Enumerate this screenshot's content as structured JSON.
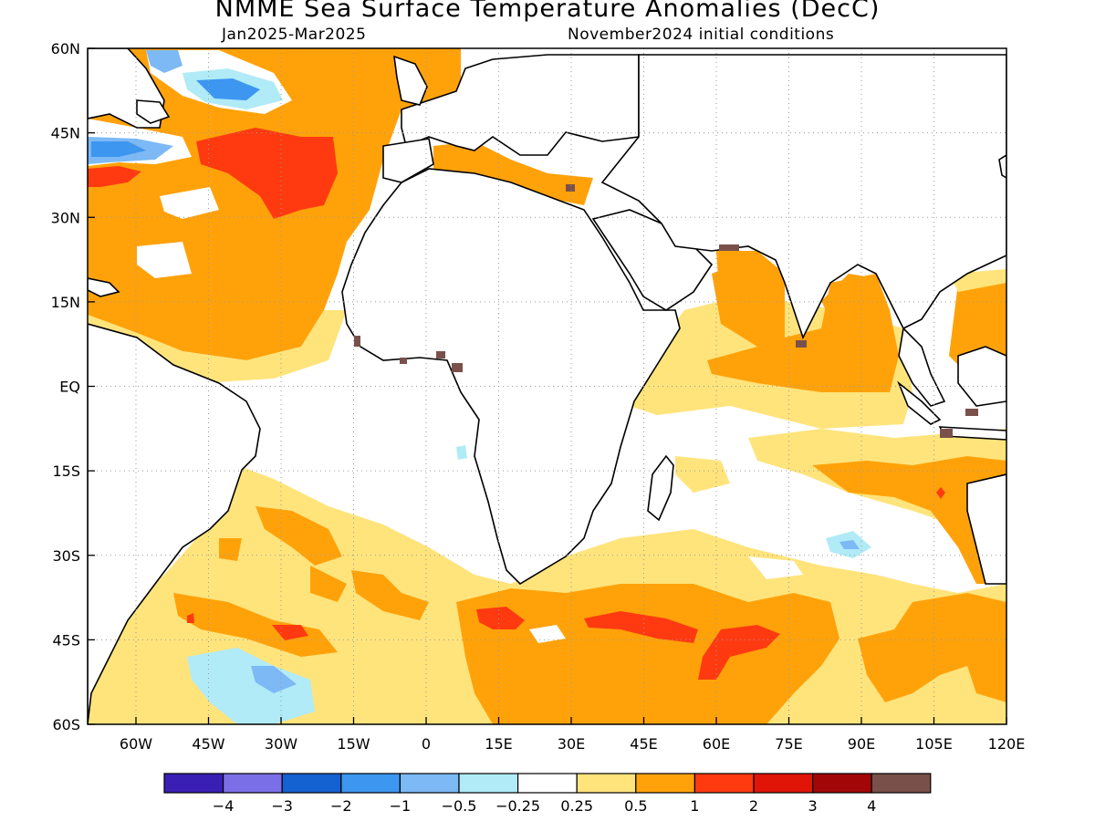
{
  "title": "NMME Sea Surface Temperature Anomalies (DecC)",
  "period": "Jan2025-Mar2025",
  "initial_conditions": "November2024 initial conditions",
  "map": {
    "lon_range": [
      -70,
      120
    ],
    "lat_range": [
      -60,
      60
    ],
    "lat_ticks": [
      "60N",
      "45N",
      "30N",
      "15N",
      "EQ",
      "15S",
      "30S",
      "45S",
      "60S"
    ],
    "lon_ticks": [
      "60W",
      "45W",
      "30W",
      "15W",
      "0",
      "15E",
      "30E",
      "45E",
      "60E",
      "75E",
      "90E",
      "105E",
      "120E"
    ],
    "grid": "dotted"
  },
  "colorbar": {
    "colors": [
      "#3a1fb4",
      "#7b6fe8",
      "#1461d2",
      "#3d96f0",
      "#7cb9f5",
      "#b0ebf7",
      "#ffffff",
      "#ffe47c",
      "#ffa20a",
      "#ff3a10",
      "#e01508",
      "#a30607",
      "#79514a"
    ],
    "labels": [
      "-4",
      "-3",
      "-2",
      "-1",
      "-0.5",
      "-0.25",
      "0.25",
      "0.5",
      "1",
      "2",
      "3",
      "4"
    ]
  }
}
